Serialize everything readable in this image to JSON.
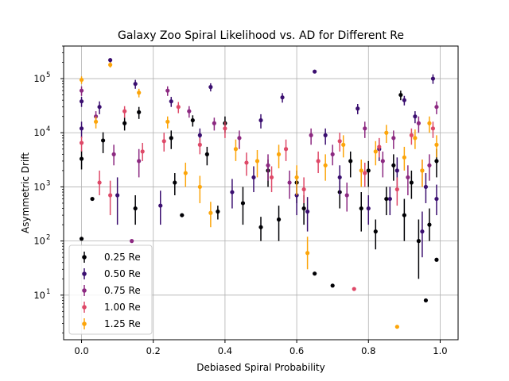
{
  "chart_data": {
    "type": "scatter",
    "title": "Galaxy Zoo Spiral Likelihood vs. AD for Different Re",
    "xlabel": "Debiased Spiral Probability",
    "ylabel": "Asymmetric Drift",
    "xlim": [
      -0.05,
      1.05
    ],
    "ylim": [
      1.5,
      400000
    ],
    "yscale": "log",
    "grid": true,
    "legend_position": "lower-left",
    "x_ticks": [
      {
        "value": 0.0,
        "label": "0.0"
      },
      {
        "value": 0.2,
        "label": "0.2"
      },
      {
        "value": 0.4,
        "label": "0.4"
      },
      {
        "value": 0.6,
        "label": "0.6"
      },
      {
        "value": 0.8,
        "label": "0.8"
      },
      {
        "value": 1.0,
        "label": "1.0"
      }
    ],
    "y_ticks": [
      {
        "value": 10,
        "base": "10",
        "exp": "1"
      },
      {
        "value": 100,
        "base": "10",
        "exp": "2"
      },
      {
        "value": 1000,
        "base": "10",
        "exp": "3"
      },
      {
        "value": 10000,
        "base": "10",
        "exp": "4"
      },
      {
        "value": 100000,
        "base": "10",
        "exp": "5"
      }
    ],
    "series": [
      {
        "name": "0.25 Re",
        "color": "#000004",
        "points": [
          [
            0.0,
            110,
            0,
            0
          ],
          [
            0.0,
            3300,
            1200,
            1400
          ],
          [
            0.03,
            600,
            0,
            0
          ],
          [
            0.06,
            7200,
            3000,
            3000
          ],
          [
            0.12,
            15000,
            4000,
            4000
          ],
          [
            0.15,
            400,
            200,
            300
          ],
          [
            0.16,
            24000,
            6000,
            6000
          ],
          [
            0.25,
            8000,
            3000,
            3000
          ],
          [
            0.26,
            1200,
            500,
            600
          ],
          [
            0.28,
            300,
            0,
            0
          ],
          [
            0.31,
            17000,
            4000,
            4000
          ],
          [
            0.35,
            4000,
            1500,
            1500
          ],
          [
            0.38,
            350,
            100,
            100
          ],
          [
            0.4,
            15000,
            5000,
            5000
          ],
          [
            0.45,
            500,
            300,
            500
          ],
          [
            0.5,
            180,
            80,
            100
          ],
          [
            0.52,
            2000,
            1000,
            1200
          ],
          [
            0.55,
            250,
            150,
            200
          ],
          [
            0.6,
            1200,
            700,
            800
          ],
          [
            0.62,
            400,
            200,
            300
          ],
          [
            0.65,
            25,
            0,
            0
          ],
          [
            0.7,
            15,
            0,
            0
          ],
          [
            0.72,
            800,
            400,
            500
          ],
          [
            0.75,
            3000,
            1500,
            1500
          ],
          [
            0.78,
            400,
            250,
            400
          ],
          [
            0.8,
            2000,
            1000,
            1000
          ],
          [
            0.82,
            150,
            80,
            100
          ],
          [
            0.85,
            600,
            300,
            400
          ],
          [
            0.87,
            2500,
            1200,
            1500
          ],
          [
            0.89,
            50000,
            10000,
            10000
          ],
          [
            0.9,
            300,
            200,
            300
          ],
          [
            0.92,
            1200,
            600,
            800
          ],
          [
            0.94,
            100,
            80,
            150
          ],
          [
            0.96,
            8,
            0,
            0
          ],
          [
            0.97,
            200,
            100,
            200
          ],
          [
            0.99,
            45,
            0,
            0
          ],
          [
            0.99,
            3000,
            1500,
            2000
          ]
        ]
      },
      {
        "name": "0.50 Re",
        "color": "#3b0f70",
        "points": [
          [
            0.0,
            38000,
            8000,
            8000
          ],
          [
            0.0,
            12000,
            4000,
            4000
          ],
          [
            0.05,
            30000,
            8000,
            8000
          ],
          [
            0.08,
            220000,
            20000,
            20000
          ],
          [
            0.1,
            700,
            500,
            800
          ],
          [
            0.15,
            80000,
            15000,
            15000
          ],
          [
            0.22,
            450,
            250,
            400
          ],
          [
            0.25,
            38000,
            8000,
            8000
          ],
          [
            0.33,
            9000,
            3000,
            3000
          ],
          [
            0.36,
            70000,
            12000,
            12000
          ],
          [
            0.42,
            800,
            400,
            600
          ],
          [
            0.48,
            1500,
            700,
            900
          ],
          [
            0.5,
            17000,
            5000,
            5000
          ],
          [
            0.56,
            45000,
            9000,
            9000
          ],
          [
            0.6,
            700,
            400,
            500
          ],
          [
            0.63,
            350,
            200,
            300
          ],
          [
            0.65,
            135000,
            10000,
            10000
          ],
          [
            0.68,
            9000,
            3000,
            3000
          ],
          [
            0.72,
            1500,
            800,
            1000
          ],
          [
            0.77,
            28000,
            6000,
            6000
          ],
          [
            0.8,
            400,
            200,
            300
          ],
          [
            0.83,
            5000,
            2000,
            2500
          ],
          [
            0.86,
            600,
            300,
            400
          ],
          [
            0.88,
            2000,
            1000,
            1500
          ],
          [
            0.9,
            40000,
            8000,
            8000
          ],
          [
            0.93,
            20000,
            5000,
            5000
          ],
          [
            0.95,
            150,
            100,
            200
          ],
          [
            0.96,
            1000,
            500,
            800
          ],
          [
            0.98,
            100000,
            20000,
            20000
          ],
          [
            0.99,
            600,
            300,
            500
          ]
        ]
      },
      {
        "name": "0.75 Re",
        "color": "#8c2981",
        "points": [
          [
            0.0,
            60000,
            12000,
            12000
          ],
          [
            0.04,
            20000,
            5000,
            5000
          ],
          [
            0.09,
            4000,
            1500,
            2000
          ],
          [
            0.14,
            100,
            0,
            0
          ],
          [
            0.16,
            3000,
            1500,
            2000
          ],
          [
            0.24,
            60000,
            12000,
            12000
          ],
          [
            0.3,
            25000,
            6000,
            6000
          ],
          [
            0.37,
            15000,
            4000,
            4000
          ],
          [
            0.44,
            8000,
            3000,
            3000
          ],
          [
            0.52,
            2500,
            1200,
            1500
          ],
          [
            0.58,
            1200,
            600,
            800
          ],
          [
            0.64,
            9000,
            3000,
            3000
          ],
          [
            0.7,
            4000,
            1500,
            2000
          ],
          [
            0.74,
            700,
            350,
            500
          ],
          [
            0.79,
            12000,
            4000,
            4000
          ],
          [
            0.84,
            3000,
            1500,
            1500
          ],
          [
            0.87,
            8000,
            3000,
            3000
          ],
          [
            0.91,
            1500,
            800,
            1000
          ],
          [
            0.94,
            15000,
            5000,
            5000
          ],
          [
            0.97,
            2500,
            1200,
            1500
          ],
          [
            0.99,
            30000,
            8000,
            8000
          ]
        ]
      },
      {
        "name": "1.00 Re",
        "color": "#de4968",
        "points": [
          [
            0.0,
            6500,
            2000,
            2000
          ],
          [
            0.05,
            1200,
            500,
            800
          ],
          [
            0.08,
            700,
            400,
            600
          ],
          [
            0.12,
            25000,
            6000,
            6000
          ],
          [
            0.17,
            4500,
            1500,
            2000
          ],
          [
            0.23,
            7000,
            2500,
            3000
          ],
          [
            0.27,
            30000,
            7000,
            7000
          ],
          [
            0.33,
            6000,
            2000,
            2000
          ],
          [
            0.4,
            12000,
            4000,
            4000
          ],
          [
            0.46,
            2800,
            1200,
            1500
          ],
          [
            0.53,
            1500,
            700,
            900
          ],
          [
            0.57,
            5000,
            2000,
            2500
          ],
          [
            0.62,
            900,
            400,
            600
          ],
          [
            0.66,
            3000,
            1200,
            1500
          ],
          [
            0.72,
            7000,
            2500,
            3000
          ],
          [
            0.76,
            13,
            0,
            0
          ],
          [
            0.79,
            1800,
            800,
            1000
          ],
          [
            0.83,
            5500,
            2000,
            2500
          ],
          [
            0.88,
            900,
            450,
            600
          ],
          [
            0.92,
            9000,
            3000,
            3000
          ],
          [
            0.95,
            2000,
            1000,
            1200
          ],
          [
            0.98,
            12000,
            4000,
            4000
          ]
        ]
      },
      {
        "name": "1.25 Re",
        "color": "#fca50a",
        "points": [
          [
            0.0,
            95000,
            15000,
            15000
          ],
          [
            0.04,
            16000,
            4000,
            4000
          ],
          [
            0.08,
            180000,
            20000,
            20000
          ],
          [
            0.16,
            55000,
            10000,
            10000
          ],
          [
            0.24,
            16000,
            4000,
            4000
          ],
          [
            0.29,
            1800,
            800,
            1000
          ],
          [
            0.33,
            1000,
            500,
            600
          ],
          [
            0.36,
            330,
            150,
            200
          ],
          [
            0.43,
            5000,
            2000,
            2500
          ],
          [
            0.49,
            3000,
            1500,
            1800
          ],
          [
            0.55,
            4000,
            1800,
            2000
          ],
          [
            0.6,
            1500,
            800,
            1000
          ],
          [
            0.63,
            60,
            30,
            60
          ],
          [
            0.68,
            2500,
            1200,
            1500
          ],
          [
            0.73,
            6000,
            2500,
            3000
          ],
          [
            0.78,
            2000,
            1000,
            1200
          ],
          [
            0.82,
            4500,
            2000,
            2500
          ],
          [
            0.85,
            10000,
            3500,
            4000
          ],
          [
            0.88,
            2.6,
            0,
            0
          ],
          [
            0.9,
            3500,
            1500,
            2000
          ],
          [
            0.93,
            8000,
            3000,
            3500
          ],
          [
            0.95,
            2000,
            1000,
            1200
          ],
          [
            0.97,
            15000,
            5000,
            5000
          ],
          [
            0.99,
            6000,
            2500,
            3000
          ]
        ]
      }
    ]
  }
}
